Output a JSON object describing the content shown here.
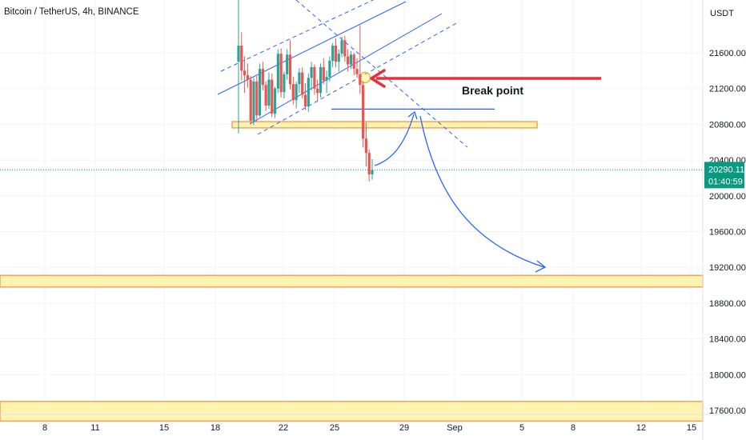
{
  "header": {
    "symbol_title": "Bitcoin / TetherUS, 4h, BINANCE"
  },
  "price_axis": {
    "currency": "USDT"
  },
  "last_price": {
    "value": "20290.11",
    "countdown": "01:40:59",
    "price": 20290.11
  },
  "annotation": {
    "text": "Break point"
  },
  "colors": {
    "up": "#26a69a",
    "down": "#ef5350",
    "drawing_blue": "#2962ff",
    "zone_fill": "#fff3b0",
    "zone_border": "#f4a25b",
    "arrow_red": "#e5303b",
    "last_price_tag": "#089981",
    "grid": "#f0f3fa"
  },
  "chart_data": {
    "type": "candlestick",
    "title": "Bitcoin / TetherUS, 4h, BINANCE",
    "y_unit": "USDT",
    "y_ticks": [
      17600,
      18000,
      18400,
      18800,
      19200,
      19600,
      20000,
      20400,
      20800,
      21200,
      21600
    ],
    "x_tick_labels": [
      "8",
      "11",
      "15",
      "18",
      "22",
      "25",
      "29",
      "Sep",
      "5",
      "8",
      "12",
      "15"
    ],
    "last_price": 20290.11,
    "support_zones": [
      {
        "low": 20760,
        "high": 20830
      },
      {
        "low": 18980,
        "high": 19110
      },
      {
        "low": 17480,
        "high": 17700
      }
    ],
    "break_level": 20970,
    "candles": [
      [
        21500,
        22200,
        20700,
        21680
      ],
      [
        21680,
        21830,
        21290,
        21400
      ],
      [
        21400,
        21560,
        21150,
        21350
      ],
      [
        21350,
        21480,
        21210,
        21300
      ],
      [
        21300,
        21340,
        20800,
        20840
      ],
      [
        20840,
        21320,
        20790,
        21280
      ],
      [
        21280,
        21340,
        20830,
        20900
      ],
      [
        20900,
        21480,
        20880,
        21420
      ],
      [
        21420,
        21500,
        21180,
        21240
      ],
      [
        21240,
        21280,
        20950,
        21010
      ],
      [
        21010,
        21380,
        20970,
        21300
      ],
      [
        21300,
        21370,
        20880,
        20920
      ],
      [
        20920,
        21220,
        20870,
        21200
      ],
      [
        21200,
        21640,
        21150,
        21590
      ],
      [
        21590,
        21650,
        21100,
        21160
      ],
      [
        21160,
        21390,
        21090,
        21360
      ],
      [
        21360,
        21640,
        21300,
        21580
      ],
      [
        21580,
        21740,
        21190,
        21250
      ],
      [
        21250,
        21330,
        21020,
        21070
      ],
      [
        21070,
        21280,
        20980,
        21250
      ],
      [
        21250,
        21430,
        21150,
        21380
      ],
      [
        21380,
        21440,
        21090,
        21130
      ],
      [
        21130,
        21260,
        20960,
        21000
      ],
      [
        21000,
        21370,
        20940,
        21320
      ],
      [
        21320,
        21500,
        21180,
        21440
      ],
      [
        21440,
        21470,
        21130,
        21200
      ],
      [
        21200,
        21300,
        21050,
        21150
      ],
      [
        21150,
        21480,
        21100,
        21440
      ],
      [
        21440,
        21540,
        21250,
        21290
      ],
      [
        21290,
        21400,
        21150,
        21330
      ],
      [
        21330,
        21560,
        21280,
        21510
      ],
      [
        21510,
        21710,
        21440,
        21680
      ],
      [
        21680,
        21760,
        21440,
        21500
      ],
      [
        21500,
        21640,
        21390,
        21590
      ],
      [
        21590,
        21780,
        21550,
        21740
      ],
      [
        21740,
        21790,
        21500,
        21560
      ],
      [
        21560,
        21640,
        21390,
        21470
      ],
      [
        21470,
        21620,
        21420,
        21580
      ],
      [
        21580,
        21600,
        21350,
        21420
      ],
      [
        21420,
        21540,
        21320,
        21360
      ],
      [
        21360,
        21910,
        21140,
        21240
      ],
      [
        21240,
        21280,
        20540,
        20640
      ],
      [
        20640,
        20820,
        20330,
        20480
      ],
      [
        20480,
        20520,
        20160,
        20240
      ],
      [
        20240,
        20410,
        20180,
        20290
      ]
    ]
  }
}
